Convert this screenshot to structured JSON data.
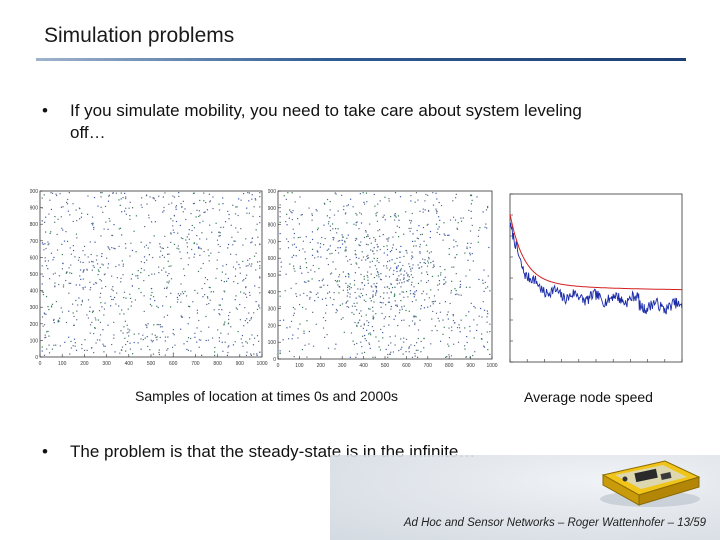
{
  "slide": {
    "title": "Simulation problems",
    "bullet_marker": "•",
    "bullets": [
      "If you simulate mobility, you need to take care about system leveling off…",
      "The problem is that the steady-state is in the infinite…"
    ],
    "captions": [
      "Samples of location at times 0s and 2000s",
      "Average node speed"
    ],
    "footer": "Ad Hoc and Sensor Networks – Roger Wattenhofer – 13/59"
  },
  "chart_data": [
    {
      "type": "scatter",
      "xlim": [
        0,
        1000
      ],
      "ylim": [
        0,
        1000
      ],
      "x_ticks": [
        "0",
        "100",
        "200",
        "300",
        "400",
        "500",
        "600",
        "700",
        "800",
        "900",
        "1000"
      ],
      "y_ticks": [
        "0",
        "100",
        "200",
        "300",
        "400",
        "500",
        "600",
        "700",
        "800",
        "900",
        "1000"
      ],
      "point_count": 900,
      "color": "#5a6a86"
    },
    {
      "type": "scatter",
      "xlim": [
        0,
        1000
      ],
      "ylim": [
        0,
        1000
      ],
      "x_ticks": [
        "0",
        "100",
        "200",
        "300",
        "400",
        "500",
        "600",
        "700",
        "800",
        "900",
        "1000"
      ],
      "y_ticks": [
        "0",
        "100",
        "200",
        "300",
        "400",
        "500",
        "600",
        "700",
        "800",
        "900",
        "1000"
      ],
      "point_count": 1000,
      "color": "#5a6a86"
    },
    {
      "type": "line",
      "xlim": [
        0,
        2000
      ],
      "ylim": [
        0,
        40
      ],
      "series": [
        {
          "role": "measured",
          "color": "#1a2aa8"
        },
        {
          "role": "fit",
          "color": "#d22020"
        }
      ]
    }
  ],
  "colors": {
    "title_rule_dark": "#1e3f73",
    "title_rule_light": "#9fb3cc",
    "device_body": "#e2b318"
  }
}
